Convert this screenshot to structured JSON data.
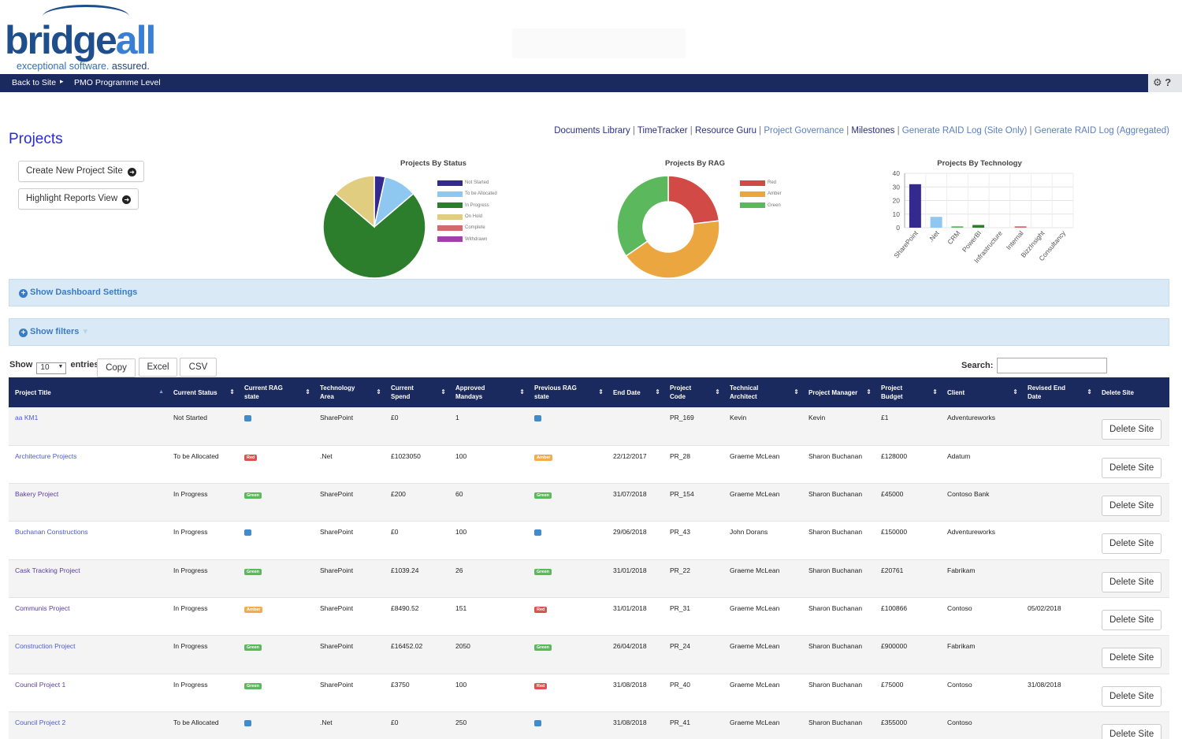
{
  "brand": {
    "word_a": "bridge",
    "word_b": "all",
    "tag_a": "exceptional software.",
    "tag_b": " assured."
  },
  "nav": {
    "back": "Back to Site",
    "crumb": "PMO Programme Level",
    "tools": "⚙ ?"
  },
  "page": {
    "title": "Projects"
  },
  "links": [
    {
      "label": "Documents Library",
      "style": "dark"
    },
    {
      "label": "TimeTracker",
      "style": "dark"
    },
    {
      "label": "Resource Guru",
      "style": "dark"
    },
    {
      "label": "Project Governance",
      "style": "light"
    },
    {
      "label": "Milestones",
      "style": "dark"
    },
    {
      "label": "Generate RAID Log (Site Only)",
      "style": "light"
    },
    {
      "label": "Generate RAID Log (Aggregated)",
      "style": "light"
    }
  ],
  "actions": {
    "create": "Create New Project Site",
    "highlight": "Highlight Reports View"
  },
  "chart_data": [
    {
      "type": "pie",
      "title": "Projects By Status",
      "categories": [
        "Not Started",
        "To be Allocated",
        "In Progress",
        "On Hold",
        "Complete",
        "Withdrawn"
      ],
      "values": [
        1,
        3,
        21,
        4,
        0,
        0
      ],
      "colors": [
        "#33298e",
        "#8ec8f1",
        "#2c7d2c",
        "#e0cd7f",
        "#d46a6a",
        "#a040a8"
      ],
      "legend": "right"
    },
    {
      "type": "pie",
      "title": "Projects By RAG",
      "categories": [
        "Red",
        "Amber",
        "Green"
      ],
      "values": [
        6,
        11,
        9
      ],
      "colors": [
        "#d24a45",
        "#eca640",
        "#5cb85c"
      ],
      "legend": "right"
    },
    {
      "type": "bar",
      "title": "Projects By Technology",
      "categories": [
        "SharePoint",
        ".Net",
        "CRM",
        "PowerBI",
        "Infrastructure",
        "Internal",
        "BizzInsight",
        "Consultancy"
      ],
      "values": [
        32,
        8,
        1,
        2,
        0,
        1,
        0,
        0
      ],
      "colors": [
        "#33298e",
        "#8ec8f1",
        "#5cb85c",
        "#2c7d2c",
        "#e0cd7f",
        "#d46a6a",
        "#a040a8",
        "#999999"
      ],
      "yticks": [
        0,
        10,
        20,
        30,
        40
      ],
      "ylim": [
        0,
        40
      ],
      "grid": true
    }
  ],
  "panels": {
    "dashboard": "Show Dashboard Settings",
    "filters": "Show filters"
  },
  "table_controls": {
    "show": "Show",
    "entries_value": "10",
    "entries": "entries",
    "copy": "Copy",
    "excel": "Excel",
    "csv": "CSV",
    "search": "Search:"
  },
  "columns": [
    {
      "l1": "Project Title",
      "l2": "",
      "sort": "asc"
    },
    {
      "l1": "Current Status",
      "l2": "",
      "sort": "both"
    },
    {
      "l1": "Current RAG",
      "l2": "state",
      "sort": "both"
    },
    {
      "l1": "Technology",
      "l2": "Area",
      "sort": "both"
    },
    {
      "l1": "Current",
      "l2": "Spend",
      "sort": "both"
    },
    {
      "l1": "Approved",
      "l2": "Mandays",
      "sort": "both"
    },
    {
      "l1": "Previous RAG",
      "l2": "state",
      "sort": "both"
    },
    {
      "l1": "End Date",
      "l2": "",
      "sort": "both"
    },
    {
      "l1": "Project",
      "l2": "Code",
      "sort": "both"
    },
    {
      "l1": "Technical",
      "l2": "Architect",
      "sort": "both"
    },
    {
      "l1": "Project Manager",
      "l2": "",
      "sort": "both"
    },
    {
      "l1": "Project",
      "l2": "Budget",
      "sort": "both"
    },
    {
      "l1": "Client",
      "l2": "",
      "sort": "both"
    },
    {
      "l1": "Revised End",
      "l2": "Date",
      "sort": "both"
    },
    {
      "l1": "Delete Site",
      "l2": "",
      "sort": "none"
    }
  ],
  "badge_colors": {
    "Red": "#d9534f",
    "Amber": "#f0ad4e",
    "Green": "#5cb85c",
    "": "#428bca"
  },
  "rows": [
    {
      "title": "aa KM1",
      "visited": false,
      "status": "Not Started",
      "rag": "",
      "tech": "SharePoint",
      "spend": "£0",
      "mandays": "1",
      "prev": "",
      "end": "",
      "code": "PR_169",
      "arch": "Kevin",
      "pm": "Kevin",
      "budget": "£1",
      "client": "Adventureworks",
      "revised": "",
      "delete": "Delete Site"
    },
    {
      "title": "Architecture Projects",
      "visited": false,
      "status": "To be Allocated",
      "rag": "Red",
      "tech": ".Net",
      "spend": "£1023050",
      "mandays": "100",
      "prev": "Amber",
      "end": "22/12/2017",
      "code": "PR_28",
      "arch": "Graeme McLean",
      "pm": "Sharon Buchanan",
      "budget": "£128000",
      "client": "Adatum",
      "revised": "",
      "delete": "Delete Site"
    },
    {
      "title": "Bakery Project",
      "visited": true,
      "status": "In Progress",
      "rag": "Green",
      "tech": "SharePoint",
      "spend": "£200",
      "mandays": "60",
      "prev": "Green",
      "end": "31/07/2018",
      "code": "PR_154",
      "arch": "Graeme McLean",
      "pm": "Sharon Buchanan",
      "budget": "£45000",
      "client": "Contoso Bank",
      "revised": "",
      "delete": "Delete Site"
    },
    {
      "title": "Buchanan Constructions",
      "visited": false,
      "status": "In Progress",
      "rag": "",
      "tech": "SharePoint",
      "spend": "£0",
      "mandays": "100",
      "prev": "",
      "end": "29/06/2018",
      "code": "PR_43",
      "arch": "John Dorans",
      "pm": "Sharon Buchanan",
      "budget": "£150000",
      "client": "Adventureworks",
      "revised": "",
      "delete": "Delete Site"
    },
    {
      "title": "Cask Tracking Project",
      "visited": true,
      "status": "In Progress",
      "rag": "Green",
      "tech": "SharePoint",
      "spend": "£1039.24",
      "mandays": "26",
      "prev": "Green",
      "end": "31/01/2018",
      "code": "PR_22",
      "arch": "Graeme McLean",
      "pm": "Sharon Buchanan",
      "budget": "£20761",
      "client": "Fabrikam",
      "revised": "",
      "delete": "Delete Site"
    },
    {
      "title": "Communis Project",
      "visited": true,
      "status": "In Progress",
      "rag": "Amber",
      "tech": "SharePoint",
      "spend": "£8490.52",
      "mandays": "151",
      "prev": "Red",
      "end": "31/01/2018",
      "code": "PR_31",
      "arch": "Graeme McLean",
      "pm": "Sharon Buchanan",
      "budget": "£100866",
      "client": "Contoso",
      "revised": "05/02/2018",
      "delete": "Delete Site"
    },
    {
      "title": "Construction Project",
      "visited": false,
      "status": "In Progress",
      "rag": "Green",
      "tech": "SharePoint",
      "spend": "£16452.02",
      "mandays": "2050",
      "prev": "Green",
      "end": "26/04/2018",
      "code": "PR_24",
      "arch": "Graeme McLean",
      "pm": "Sharon Buchanan",
      "budget": "£900000",
      "client": "Fabrikam",
      "revised": "",
      "delete": "Delete Site"
    },
    {
      "title": "Council Project 1",
      "visited": true,
      "status": "In Progress",
      "rag": "Green",
      "tech": "SharePoint",
      "spend": "£3750",
      "mandays": "100",
      "prev": "Red",
      "end": "31/08/2018",
      "code": "PR_40",
      "arch": "Graeme McLean",
      "pm": "Sharon Buchanan",
      "budget": "£75000",
      "client": "Contoso",
      "revised": "31/08/2018",
      "delete": "Delete Site"
    },
    {
      "title": "Council Project 2",
      "visited": false,
      "status": "To be Allocated",
      "rag": "",
      "tech": ".Net",
      "spend": "£0",
      "mandays": "250",
      "prev": "",
      "end": "31/08/2018",
      "code": "PR_41",
      "arch": "Graeme McLean",
      "pm": "Sharon Buchanan",
      "budget": "£355000",
      "client": "Contoso",
      "revised": "",
      "delete": "Delete Site"
    }
  ]
}
